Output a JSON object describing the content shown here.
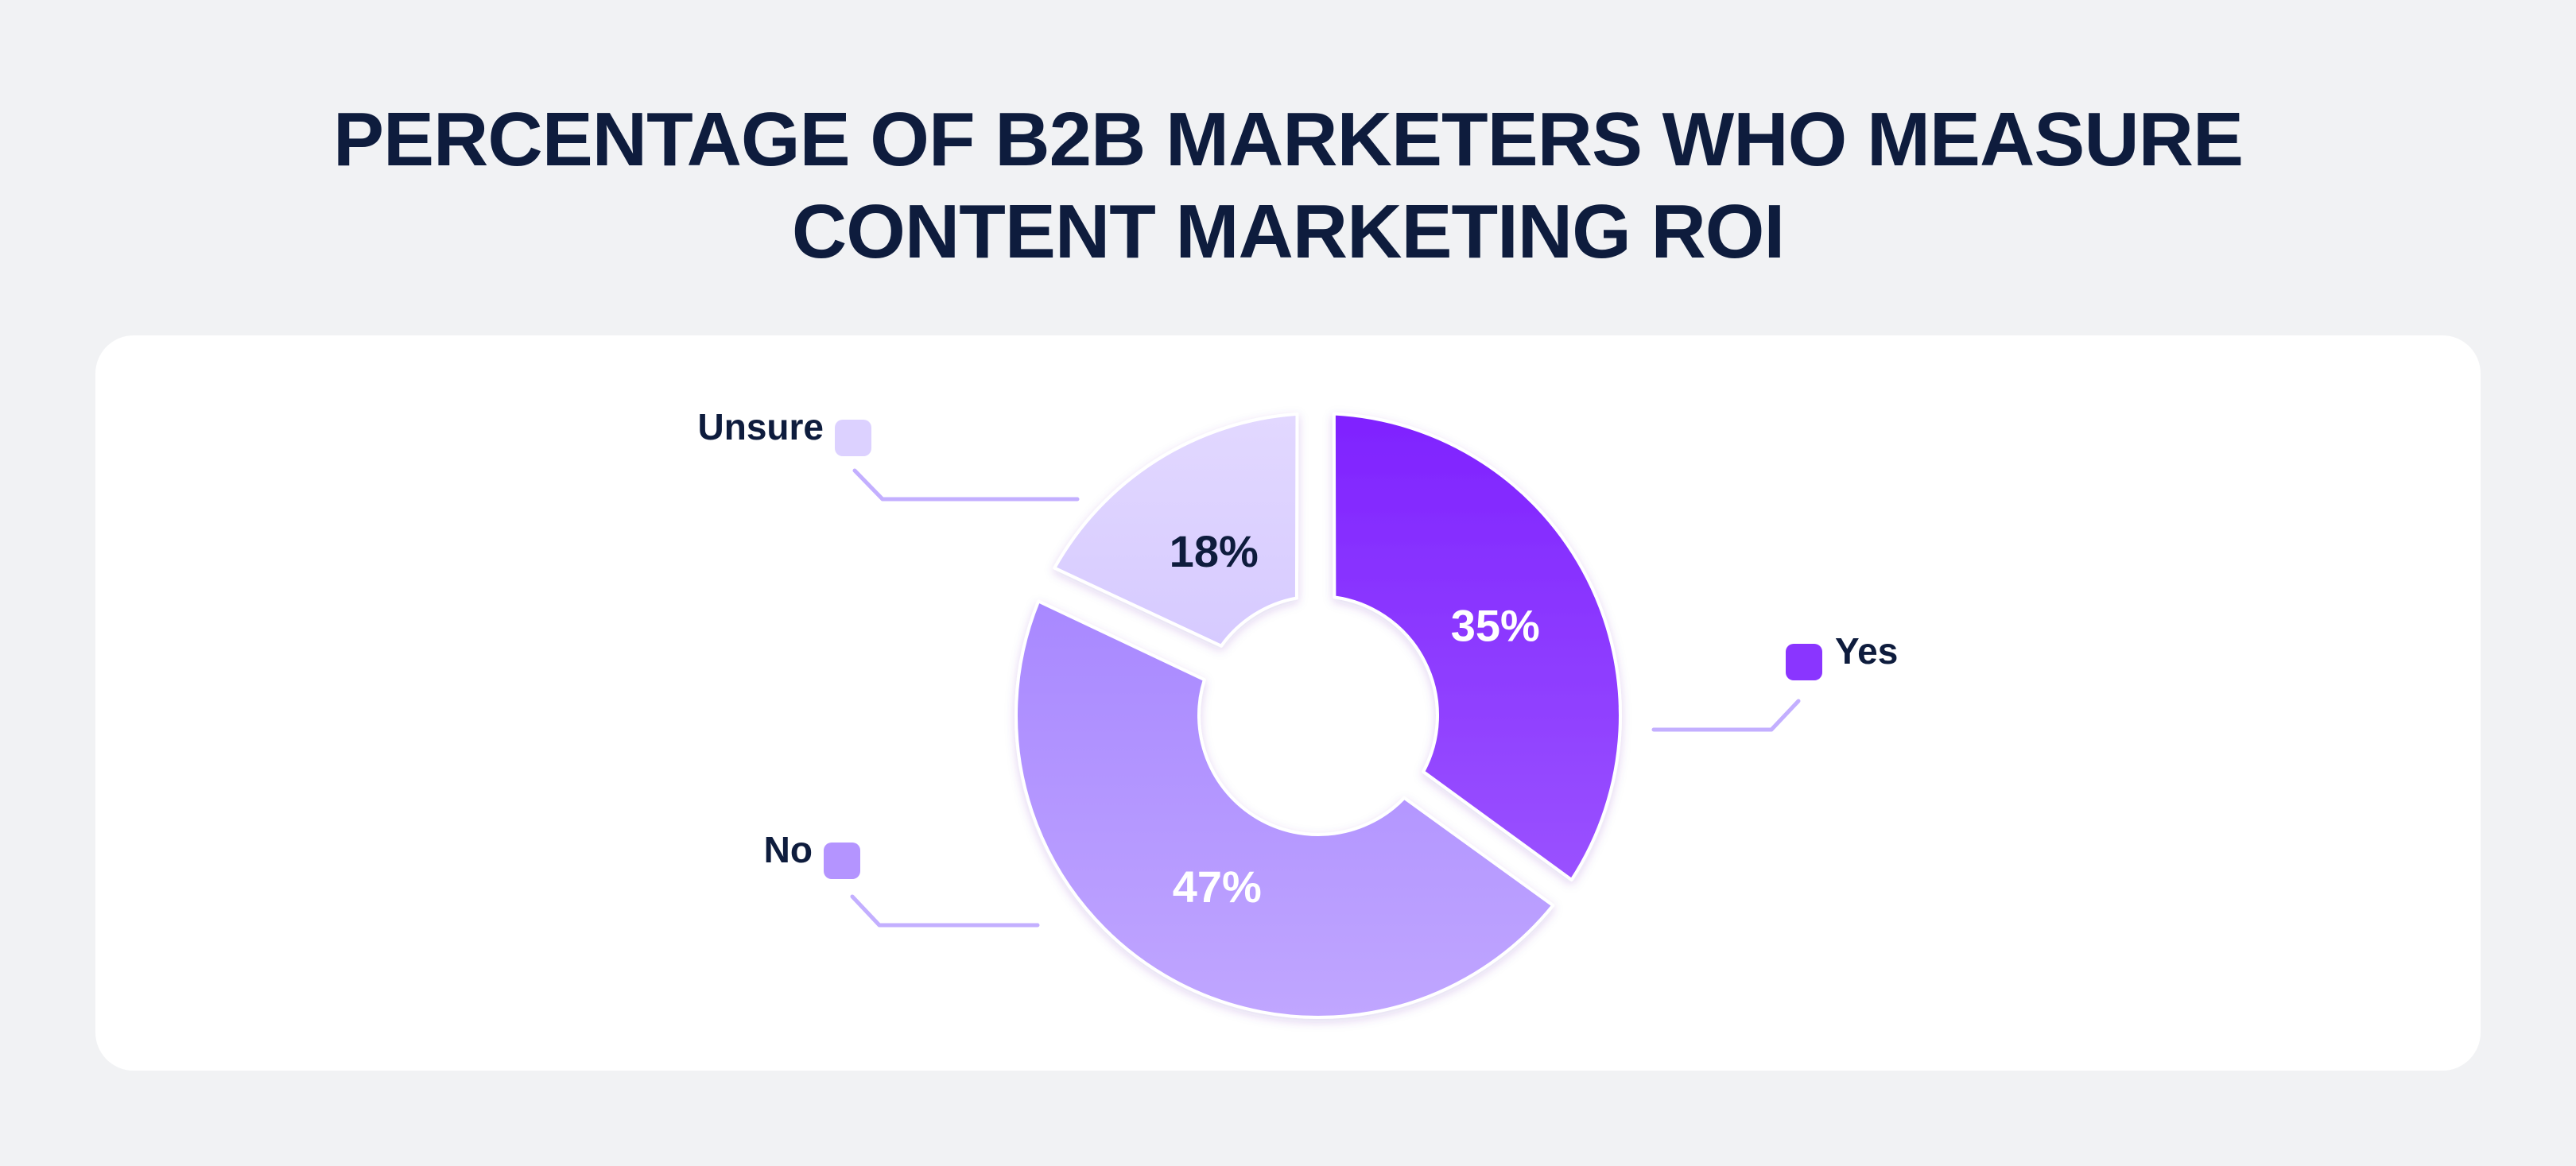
{
  "chart_data": {
    "type": "pie",
    "title_lines": [
      "PERCENTAGE OF B2B MARKETERS WHO MEASURE",
      "CONTENT MARKETING ROI"
    ],
    "slices": [
      {
        "label": "Yes",
        "value": 35,
        "display": "35%",
        "color": "#8a35ff"
      },
      {
        "label": "No",
        "value": 47,
        "display": "47%",
        "color": "#b494ff"
      },
      {
        "label": "Unsure",
        "value": 18,
        "display": "18%",
        "color": "#dcd1ff"
      }
    ]
  }
}
